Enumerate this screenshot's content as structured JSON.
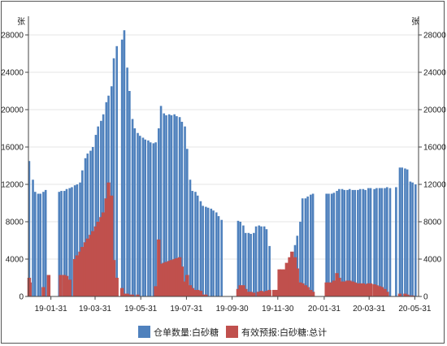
{
  "chart_data": {
    "type": "bar",
    "y_unit_left": "张",
    "y_unit_right": "张",
    "ylim": [
      0,
      30000
    ],
    "yticks": [
      0,
      4000,
      8000,
      12000,
      16000,
      20000,
      24000,
      28000
    ],
    "grid": true,
    "legend_position": "bottom",
    "x_start": "2019-01-01",
    "x_end": "2020-06-05",
    "xtick_labels": [
      "19-01-31",
      "19-03-31",
      "19-05-31",
      "19-07-31",
      "19-09-30",
      "19-11-30",
      "20-01-31",
      "20-03-31",
      "20-05-31"
    ],
    "xtick_dates": [
      "2019-01-31",
      "2019-03-31",
      "2019-05-31",
      "2019-07-31",
      "2019-09-30",
      "2019-11-30",
      "2020-01-31",
      "2020-03-31",
      "2020-05-31"
    ],
    "series": [
      {
        "name": "仓单数量:白砂糖",
        "color": "#4f81bd",
        "points": [
          [
            "2019-01-02",
            14500
          ],
          [
            "2019-01-07",
            12500
          ],
          [
            "2019-01-10",
            11200
          ],
          [
            "2019-01-14",
            11000
          ],
          [
            "2019-01-17",
            11000
          ],
          [
            "2019-01-21",
            11200
          ],
          [
            "2019-01-24",
            11400
          ],
          [
            "2019-02-11",
            11200
          ],
          [
            "2019-02-14",
            11300
          ],
          [
            "2019-02-18",
            11300
          ],
          [
            "2019-02-21",
            11500
          ],
          [
            "2019-02-25",
            11600
          ],
          [
            "2019-02-28",
            11700
          ],
          [
            "2019-03-04",
            11900
          ],
          [
            "2019-03-07",
            12000
          ],
          [
            "2019-03-11",
            12200
          ],
          [
            "2019-03-14",
            13500
          ],
          [
            "2019-03-18",
            14800
          ],
          [
            "2019-03-21",
            15300
          ],
          [
            "2019-03-25",
            15600
          ],
          [
            "2019-03-28",
            16000
          ],
          [
            "2019-04-01",
            17300
          ],
          [
            "2019-04-04",
            18200
          ],
          [
            "2019-04-08",
            18800
          ],
          [
            "2019-04-11",
            19500
          ],
          [
            "2019-04-15",
            20800
          ],
          [
            "2019-04-18",
            21500
          ],
          [
            "2019-04-22",
            22500
          ],
          [
            "2019-04-25",
            25500
          ],
          [
            "2019-04-29",
            26800
          ],
          [
            "2019-05-06",
            27500
          ],
          [
            "2019-05-09",
            28500
          ],
          [
            "2019-05-13",
            24500
          ],
          [
            "2019-05-16",
            22000
          ],
          [
            "2019-05-20",
            19000
          ],
          [
            "2019-05-23",
            18000
          ],
          [
            "2019-05-27",
            17500
          ],
          [
            "2019-05-30",
            17200
          ],
          [
            "2019-06-03",
            17000
          ],
          [
            "2019-06-06",
            16800
          ],
          [
            "2019-06-10",
            16700
          ],
          [
            "2019-06-13",
            16500
          ],
          [
            "2019-06-17",
            16400
          ],
          [
            "2019-06-20",
            16500
          ],
          [
            "2019-06-24",
            18000
          ],
          [
            "2019-06-27",
            20400
          ],
          [
            "2019-07-01",
            19600
          ],
          [
            "2019-07-04",
            19400
          ],
          [
            "2019-07-08",
            19500
          ],
          [
            "2019-07-11",
            19400
          ],
          [
            "2019-07-15",
            19500
          ],
          [
            "2019-07-18",
            19300
          ],
          [
            "2019-07-22",
            19200
          ],
          [
            "2019-07-25",
            18700
          ],
          [
            "2019-07-29",
            18200
          ],
          [
            "2019-08-01",
            15800
          ],
          [
            "2019-08-05",
            12500
          ],
          [
            "2019-08-08",
            11300
          ],
          [
            "2019-08-12",
            11200
          ],
          [
            "2019-08-15",
            10800
          ],
          [
            "2019-08-19",
            10200
          ],
          [
            "2019-08-22",
            9700
          ],
          [
            "2019-08-26",
            9600
          ],
          [
            "2019-08-29",
            9500
          ],
          [
            "2019-09-02",
            9400
          ],
          [
            "2019-09-05",
            9200
          ],
          [
            "2019-09-09",
            9000
          ],
          [
            "2019-09-12",
            8600
          ],
          [
            "2019-09-16",
            8200
          ],
          [
            "2019-10-08",
            8100
          ],
          [
            "2019-10-11",
            8000
          ],
          [
            "2019-10-15",
            7600
          ],
          [
            "2019-10-18",
            6800
          ],
          [
            "2019-10-22",
            6800
          ],
          [
            "2019-10-25",
            6700
          ],
          [
            "2019-10-29",
            6800
          ],
          [
            "2019-11-01",
            7500
          ],
          [
            "2019-11-05",
            7600
          ],
          [
            "2019-11-08",
            7500
          ],
          [
            "2019-11-12",
            7500
          ],
          [
            "2019-11-15",
            7200
          ],
          [
            "2019-11-19",
            5400
          ],
          [
            "2019-12-16",
            2000
          ],
          [
            "2019-12-19",
            4000
          ],
          [
            "2019-12-23",
            5500
          ],
          [
            "2019-12-26",
            6500
          ],
          [
            "2019-12-30",
            8000
          ],
          [
            "2020-01-02",
            10500
          ],
          [
            "2020-01-06",
            10500
          ],
          [
            "2020-01-09",
            10700
          ],
          [
            "2020-01-13",
            10900
          ],
          [
            "2020-01-16",
            11000
          ],
          [
            "2020-02-03",
            11000
          ],
          [
            "2020-02-06",
            11000
          ],
          [
            "2020-02-10",
            11000
          ],
          [
            "2020-02-13",
            11100
          ],
          [
            "2020-02-17",
            11300
          ],
          [
            "2020-02-20",
            11500
          ],
          [
            "2020-02-24",
            11500
          ],
          [
            "2020-02-27",
            11400
          ],
          [
            "2020-03-02",
            11400
          ],
          [
            "2020-03-05",
            11500
          ],
          [
            "2020-03-09",
            11400
          ],
          [
            "2020-03-12",
            11400
          ],
          [
            "2020-03-16",
            11400
          ],
          [
            "2020-03-19",
            11500
          ],
          [
            "2020-03-23",
            11500
          ],
          [
            "2020-03-26",
            11400
          ],
          [
            "2020-03-30",
            11600
          ],
          [
            "2020-04-02",
            11600
          ],
          [
            "2020-04-07",
            11500
          ],
          [
            "2020-04-10",
            11600
          ],
          [
            "2020-04-14",
            11600
          ],
          [
            "2020-04-17",
            11600
          ],
          [
            "2020-04-21",
            11600
          ],
          [
            "2020-04-24",
            11700
          ],
          [
            "2020-04-28",
            11600
          ],
          [
            "2020-05-06",
            11700
          ],
          [
            "2020-05-11",
            13800
          ],
          [
            "2020-05-14",
            13800
          ],
          [
            "2020-05-18",
            13700
          ],
          [
            "2020-05-21",
            13600
          ],
          [
            "2020-05-25",
            12300
          ],
          [
            "2020-05-28",
            12200
          ],
          [
            "2020-06-01",
            12000
          ]
        ]
      },
      {
        "name": "有效预报:白砂糖:总计",
        "color": "#c0504d",
        "points": [
          [
            "2019-01-02",
            2000
          ],
          [
            "2019-01-03",
            1500
          ],
          [
            "2019-01-21",
            1000
          ],
          [
            "2019-01-28",
            2300
          ],
          [
            "2019-02-13",
            2300
          ],
          [
            "2019-02-18",
            2300
          ],
          [
            "2019-02-21",
            2200
          ],
          [
            "2019-02-25",
            1800
          ],
          [
            "2019-03-04",
            4000
          ],
          [
            "2019-03-07",
            4400
          ],
          [
            "2019-03-11",
            4800
          ],
          [
            "2019-03-14",
            5300
          ],
          [
            "2019-03-18",
            5800
          ],
          [
            "2019-03-21",
            6200
          ],
          [
            "2019-03-25",
            6600
          ],
          [
            "2019-03-28",
            7000
          ],
          [
            "2019-04-01",
            7500
          ],
          [
            "2019-04-04",
            8000
          ],
          [
            "2019-04-08",
            8500
          ],
          [
            "2019-04-11",
            9000
          ],
          [
            "2019-04-15",
            10500
          ],
          [
            "2019-04-18",
            12200
          ],
          [
            "2019-04-22",
            10800
          ],
          [
            "2019-04-25",
            3900
          ],
          [
            "2019-04-29",
            2000
          ],
          [
            "2019-05-06",
            900
          ],
          [
            "2019-05-09",
            300
          ],
          [
            "2019-05-13",
            300
          ],
          [
            "2019-05-16",
            200
          ],
          [
            "2019-05-20",
            200
          ],
          [
            "2019-05-27",
            200
          ],
          [
            "2019-06-20",
            1100
          ],
          [
            "2019-06-24",
            6100
          ],
          [
            "2019-06-27",
            3500
          ],
          [
            "2019-07-01",
            3600
          ],
          [
            "2019-07-04",
            3700
          ],
          [
            "2019-07-08",
            3800
          ],
          [
            "2019-07-11",
            3900
          ],
          [
            "2019-07-15",
            4000
          ],
          [
            "2019-07-18",
            4100
          ],
          [
            "2019-07-22",
            4200
          ],
          [
            "2019-07-25",
            3200
          ],
          [
            "2019-07-29",
            1600
          ],
          [
            "2019-08-01",
            2300
          ],
          [
            "2019-08-05",
            1200
          ],
          [
            "2019-08-08",
            900
          ],
          [
            "2019-08-12",
            700
          ],
          [
            "2019-08-15",
            700
          ],
          [
            "2019-08-19",
            600
          ],
          [
            "2019-08-22",
            200
          ],
          [
            "2019-08-26",
            200
          ],
          [
            "2019-10-08",
            800
          ],
          [
            "2019-10-11",
            1200
          ],
          [
            "2019-10-15",
            1200
          ],
          [
            "2019-10-18",
            800
          ],
          [
            "2019-10-22",
            500
          ],
          [
            "2019-10-25",
            500
          ],
          [
            "2019-10-29",
            400
          ],
          [
            "2019-11-04",
            500
          ],
          [
            "2019-11-08",
            600
          ],
          [
            "2019-11-12",
            500
          ],
          [
            "2019-11-15",
            600
          ],
          [
            "2019-11-19",
            700
          ],
          [
            "2019-11-25",
            700
          ],
          [
            "2019-11-28",
            700
          ],
          [
            "2019-12-02",
            2900
          ],
          [
            "2019-12-05",
            2900
          ],
          [
            "2019-12-09",
            2900
          ],
          [
            "2019-12-12",
            3600
          ],
          [
            "2019-12-16",
            4200
          ],
          [
            "2019-12-19",
            4800
          ],
          [
            "2019-12-23",
            4200
          ],
          [
            "2019-12-26",
            3000
          ],
          [
            "2019-12-30",
            1500
          ],
          [
            "2020-01-02",
            1400
          ],
          [
            "2020-01-06",
            1200
          ],
          [
            "2020-01-09",
            1000
          ],
          [
            "2020-01-13",
            700
          ],
          [
            "2020-01-16",
            500
          ],
          [
            "2020-02-03",
            1500
          ],
          [
            "2020-02-06",
            1500
          ],
          [
            "2020-02-10",
            1500
          ],
          [
            "2020-02-13",
            1700
          ],
          [
            "2020-02-17",
            2500
          ],
          [
            "2020-02-20",
            2000
          ],
          [
            "2020-02-24",
            1600
          ],
          [
            "2020-02-27",
            1600
          ],
          [
            "2020-03-02",
            1700
          ],
          [
            "2020-03-05",
            1700
          ],
          [
            "2020-03-09",
            1600
          ],
          [
            "2020-03-12",
            1500
          ],
          [
            "2020-03-16",
            1400
          ],
          [
            "2020-03-19",
            1400
          ],
          [
            "2020-03-23",
            1400
          ],
          [
            "2020-03-26",
            1300
          ],
          [
            "2020-03-30",
            1400
          ],
          [
            "2020-04-02",
            1400
          ],
          [
            "2020-04-07",
            1300
          ],
          [
            "2020-04-10",
            1200
          ],
          [
            "2020-04-14",
            1100
          ],
          [
            "2020-04-17",
            1000
          ],
          [
            "2020-04-21",
            800
          ],
          [
            "2020-04-24",
            500
          ],
          [
            "2020-05-11",
            300
          ],
          [
            "2020-05-18",
            300
          ],
          [
            "2020-05-21",
            200
          ],
          [
            "2020-05-25",
            100
          ],
          [
            "2020-05-28",
            100
          ]
        ]
      }
    ]
  }
}
